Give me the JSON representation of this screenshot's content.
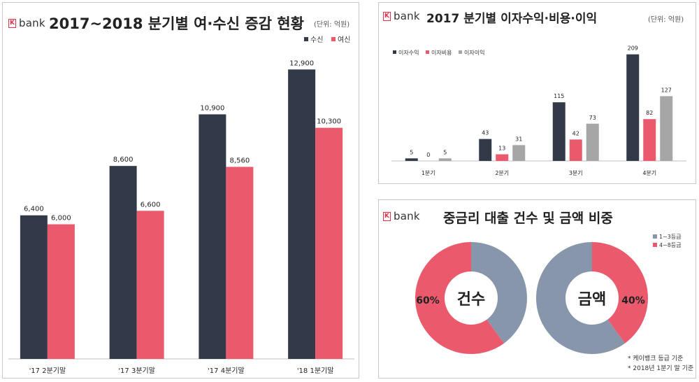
{
  "brand": {
    "name": "bank",
    "mark": "K"
  },
  "colors": {
    "navy": "#323a49",
    "red": "#ea5a6c",
    "gray": "#a6a6a6",
    "slate": "#8896ab"
  },
  "chart_data": [
    {
      "type": "bar",
      "title": "2017~2018 분기별 여·수신 증감 현황",
      "unit": "(단위: 억원)",
      "categories": [
        "'17 2분기말",
        "'17 3분기말",
        "'17 4분기말",
        "'18 1분기말"
      ],
      "series": [
        {
          "name": "수신",
          "values": [
            6400,
            8600,
            10900,
            12900
          ],
          "labels": [
            "6,400",
            "8,600",
            "10,900",
            "12,900"
          ]
        },
        {
          "name": "여신",
          "values": [
            6000,
            6600,
            8560,
            10300
          ],
          "labels": [
            "6,000",
            "6,600",
            "8,560",
            "10,300"
          ]
        }
      ],
      "ylim": [
        0,
        14000
      ],
      "legend": "top-right",
      "grid": false
    },
    {
      "type": "bar",
      "title": "2017 분기별 이자수익·비용·이익",
      "unit": "(단위: 억원)",
      "categories": [
        "1분기",
        "2분기",
        "3분기",
        "4분기"
      ],
      "series": [
        {
          "name": "이자수익",
          "values": [
            5,
            43,
            115,
            209
          ]
        },
        {
          "name": "이자비용",
          "values": [
            0,
            13,
            42,
            82
          ]
        },
        {
          "name": "이자이익",
          "values": [
            5,
            31,
            73,
            127
          ]
        }
      ],
      "ylim": [
        0,
        225
      ],
      "legend": "top-left",
      "grid": false
    },
    {
      "type": "pie",
      "title": "중금리 대출 건수 및 금액 비중",
      "legend": [
        "1~3등급",
        "4~8등급"
      ],
      "donuts": [
        {
          "center_label": "건수",
          "slices": [
            {
              "name": "1~3등급",
              "value": 40
            },
            {
              "name": "4~8등급",
              "value": 60
            }
          ],
          "shown_label": "60%"
        },
        {
          "center_label": "금액",
          "slices": [
            {
              "name": "1~3등급",
              "value": 60
            },
            {
              "name": "4~8등급",
              "value": 40
            }
          ],
          "shown_label": "40%"
        }
      ],
      "notes": [
        "* 케이뱅크 등급 기준",
        "* 2018년 1분기 말 기준"
      ]
    }
  ]
}
